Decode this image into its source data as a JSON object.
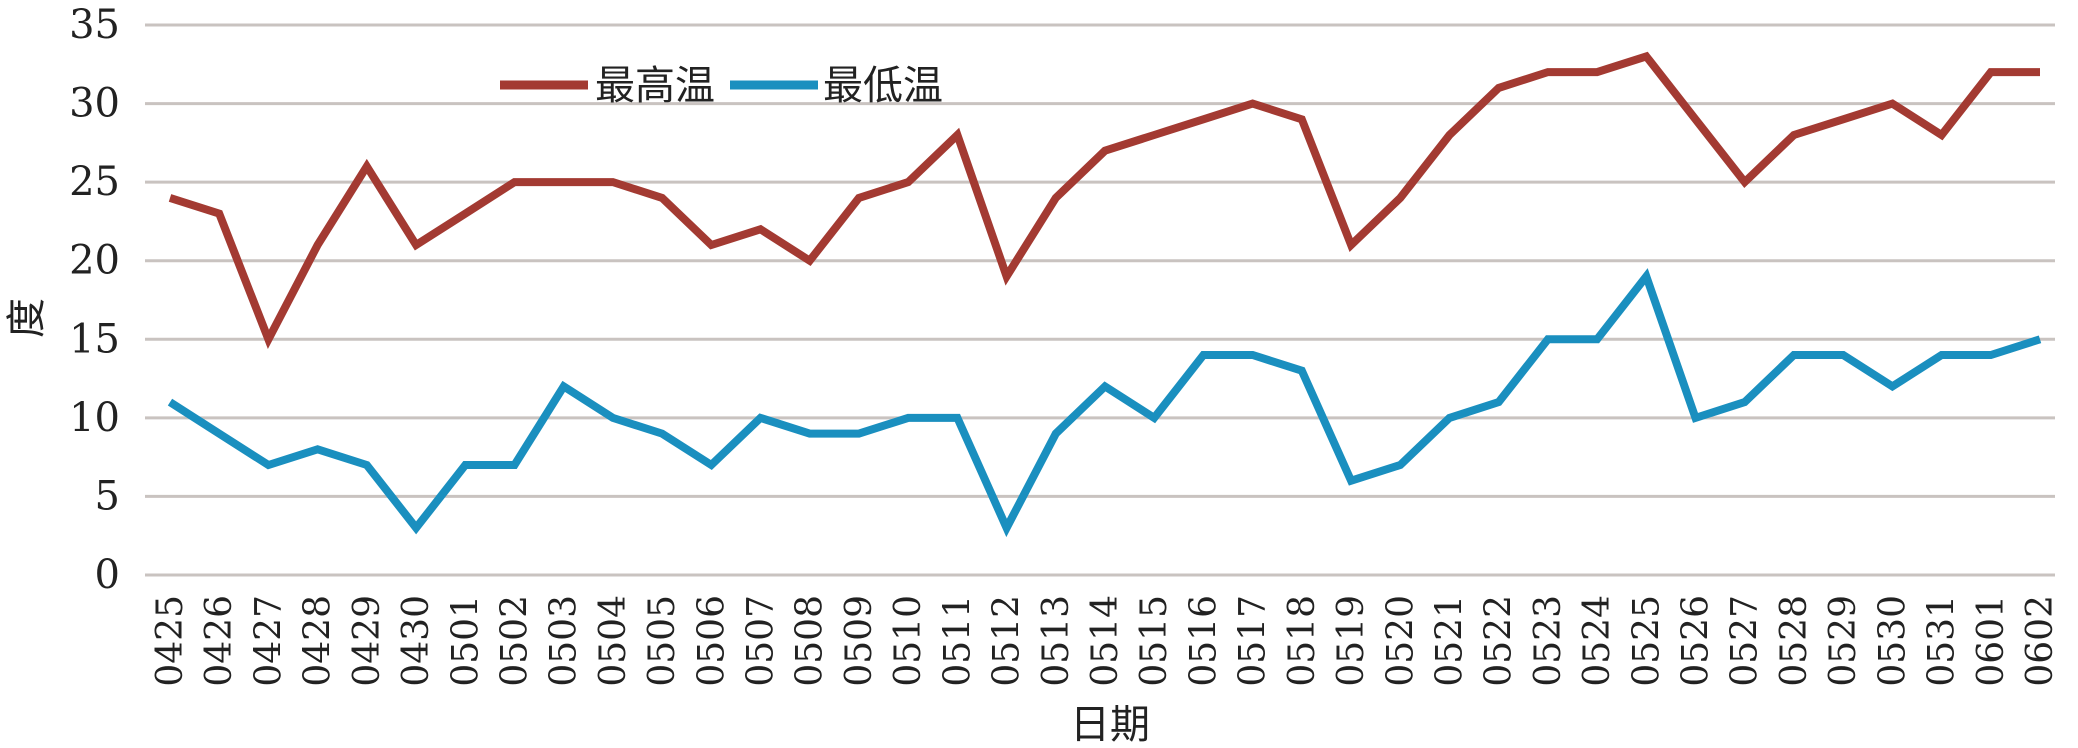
{
  "chart_data": {
    "type": "line",
    "xlabel": "日期",
    "ylabel": "度",
    "ylim": [
      0,
      35
    ],
    "yticks": [
      0,
      5,
      10,
      15,
      20,
      25,
      30,
      35
    ],
    "grid": true,
    "legend_position": "top-left",
    "categories": [
      "0425",
      "0426",
      "0427",
      "0428",
      "0429",
      "0430",
      "0501",
      "0502",
      "0503",
      "0504",
      "0505",
      "0506",
      "0507",
      "0508",
      "0509",
      "0510",
      "0511",
      "0512",
      "0513",
      "0514",
      "0515",
      "0516",
      "0517",
      "0518",
      "0519",
      "0520",
      "0521",
      "0522",
      "0523",
      "0524",
      "0525",
      "0526",
      "0527",
      "0528",
      "0529",
      "0530",
      "0531",
      "0601",
      "0602"
    ],
    "series": [
      {
        "name": "最高温",
        "color": "#a33a32",
        "values": [
          24,
          23,
          15,
          21,
          26,
          21,
          23,
          25,
          25,
          25,
          24,
          21,
          22,
          20,
          24,
          25,
          28,
          19,
          24,
          27,
          28,
          29,
          30,
          29,
          21,
          24,
          28,
          31,
          32,
          32,
          33,
          29,
          25,
          28,
          29,
          30,
          28,
          32,
          32
        ]
      },
      {
        "name": "最低温",
        "color": "#1a8fbf",
        "values": [
          11,
          9,
          7,
          8,
          7,
          3,
          7,
          7,
          12,
          10,
          9,
          7,
          10,
          9,
          9,
          10,
          10,
          3,
          9,
          12,
          10,
          14,
          14,
          13,
          6,
          7,
          10,
          11,
          15,
          15,
          19,
          10,
          11,
          14,
          14,
          12,
          14,
          14,
          15
        ]
      }
    ]
  }
}
